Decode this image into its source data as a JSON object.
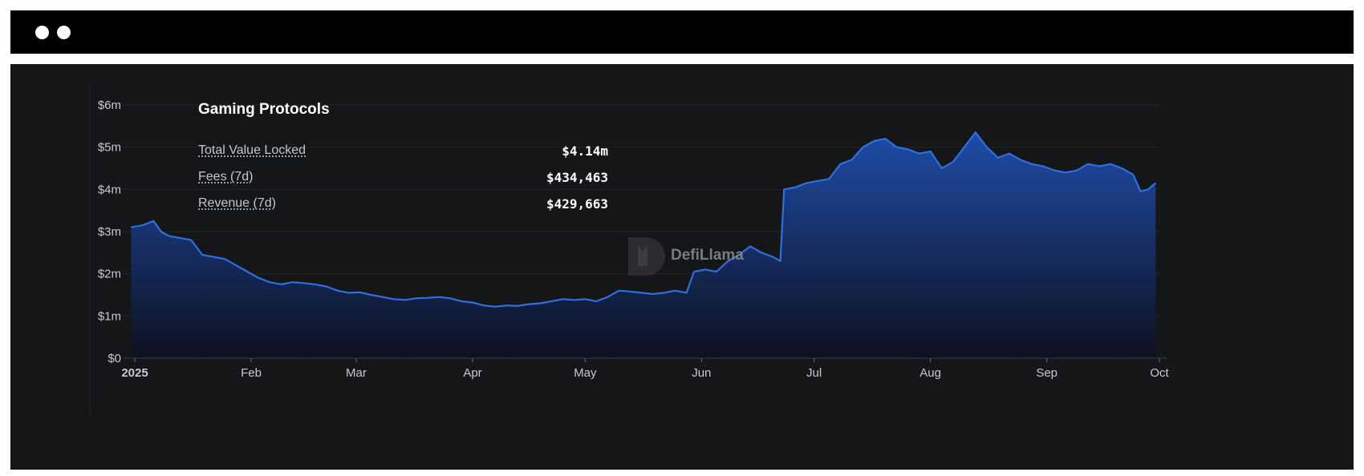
{
  "window": {
    "controls": [
      "window-dot",
      "window-dot"
    ]
  },
  "chart_data": {
    "type": "area",
    "title": "Gaming Protocols",
    "stats": [
      {
        "label": "Total Value Locked",
        "value": "$4.14m"
      },
      {
        "label": "Fees (7d)",
        "value": "$434,463"
      },
      {
        "label": "Revenue (7d)",
        "value": "$429,663"
      }
    ],
    "watermark": "DefiLlama",
    "xlabel": "",
    "ylabel": "",
    "y_ticks": [
      "$0",
      "$1m",
      "$2m",
      "$3m",
      "$4m",
      "$5m",
      "$6m"
    ],
    "x_ticks": [
      {
        "label": "2025",
        "date": "2025-01-01"
      },
      {
        "label": "Feb",
        "date": "2025-02-01"
      },
      {
        "label": "Mar",
        "date": "2025-03-01"
      },
      {
        "label": "Apr",
        "date": "2025-04-01"
      },
      {
        "label": "May",
        "date": "2025-05-01"
      },
      {
        "label": "Jun",
        "date": "2025-06-01"
      },
      {
        "label": "Jul",
        "date": "2025-07-01"
      },
      {
        "label": "Aug",
        "date": "2025-08-01"
      },
      {
        "label": "Sep",
        "date": "2025-09-01"
      },
      {
        "label": "Oct",
        "date": "2025-10-01"
      }
    ],
    "ylim": [
      0,
      6000000
    ],
    "xlim": [
      "2025-01-01",
      "2025-10-01"
    ],
    "grid": true,
    "colors": {
      "line": "#2f6fe0",
      "fill_top": "#1f4fb0",
      "fill_bottom": "#0d1020",
      "grid": "#23252a",
      "axis_text": "#c8cad0"
    },
    "series": [
      {
        "x": [
          "2024-12-31",
          "2025-01-03",
          "2025-01-06",
          "2025-01-08",
          "2025-01-10",
          "2025-01-13",
          "2025-01-16",
          "2025-01-19",
          "2025-01-22",
          "2025-01-25",
          "2025-01-28",
          "2025-01-31",
          "2025-02-03",
          "2025-02-06",
          "2025-02-09",
          "2025-02-12",
          "2025-02-15",
          "2025-02-18",
          "2025-02-21",
          "2025-02-24",
          "2025-02-27",
          "2025-03-02",
          "2025-03-05",
          "2025-03-08",
          "2025-03-11",
          "2025-03-14",
          "2025-03-17",
          "2025-03-20",
          "2025-03-23",
          "2025-03-26",
          "2025-03-29",
          "2025-04-01",
          "2025-04-04",
          "2025-04-07",
          "2025-04-10",
          "2025-04-13",
          "2025-04-16",
          "2025-04-19",
          "2025-04-22",
          "2025-04-25",
          "2025-04-28",
          "2025-05-01",
          "2025-05-04",
          "2025-05-07",
          "2025-05-10",
          "2025-05-13",
          "2025-05-16",
          "2025-05-19",
          "2025-05-22",
          "2025-05-25",
          "2025-05-28",
          "2025-05-30",
          "2025-06-02",
          "2025-06-05",
          "2025-06-08",
          "2025-06-11",
          "2025-06-14",
          "2025-06-17",
          "2025-06-20",
          "2025-06-22",
          "2025-06-23",
          "2025-06-26",
          "2025-06-29",
          "2025-07-02",
          "2025-07-05",
          "2025-07-08",
          "2025-07-11",
          "2025-07-14",
          "2025-07-17",
          "2025-07-20",
          "2025-07-23",
          "2025-07-26",
          "2025-07-29",
          "2025-08-01",
          "2025-08-04",
          "2025-08-07",
          "2025-08-10",
          "2025-08-13",
          "2025-08-16",
          "2025-08-19",
          "2025-08-22",
          "2025-08-25",
          "2025-08-28",
          "2025-08-31",
          "2025-09-03",
          "2025-09-06",
          "2025-09-09",
          "2025-09-12",
          "2025-09-15",
          "2025-09-18",
          "2025-09-21",
          "2025-09-24",
          "2025-09-26",
          "2025-09-28",
          "2025-09-30"
        ],
        "y": [
          3100000,
          3150000,
          3250000,
          3000000,
          2900000,
          2850000,
          2800000,
          2450000,
          2400000,
          2350000,
          2200000,
          2050000,
          1900000,
          1800000,
          1750000,
          1800000,
          1780000,
          1750000,
          1700000,
          1600000,
          1550000,
          1560000,
          1500000,
          1450000,
          1400000,
          1380000,
          1420000,
          1430000,
          1450000,
          1420000,
          1350000,
          1320000,
          1250000,
          1220000,
          1250000,
          1240000,
          1280000,
          1300000,
          1350000,
          1400000,
          1380000,
          1400000,
          1350000,
          1450000,
          1600000,
          1580000,
          1550000,
          1520000,
          1550000,
          1600000,
          1550000,
          2050000,
          2100000,
          2050000,
          2300000,
          2450000,
          2650000,
          2500000,
          2400000,
          2300000,
          4000000,
          4050000,
          4150000,
          4200000,
          4250000,
          4600000,
          4700000,
          5000000,
          5150000,
          5200000,
          5000000,
          4950000,
          4850000,
          4900000,
          4500000,
          4650000,
          5000000,
          5350000,
          5000000,
          4750000,
          4850000,
          4700000,
          4600000,
          4550000,
          4450000,
          4400000,
          4450000,
          4600000,
          4550000,
          4600000,
          4500000,
          4350000,
          3950000,
          4000000,
          4150000
        ]
      }
    ]
  }
}
